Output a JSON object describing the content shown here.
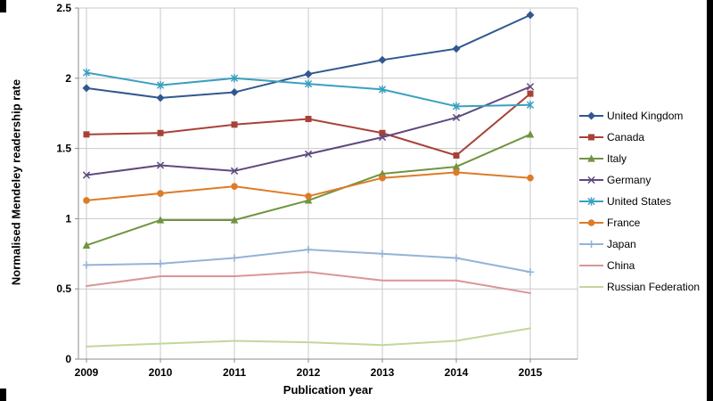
{
  "chart_data": {
    "type": "line",
    "title": "",
    "xlabel": "Publication year",
    "ylabel": "Normalised Mendeley readership rate",
    "x": [
      2009,
      2010,
      2011,
      2012,
      2013,
      2014,
      2015
    ],
    "ylim": [
      0,
      2.5
    ],
    "yticks": [
      0,
      0.5,
      1,
      1.5,
      2,
      2.5
    ],
    "ytick_labels": [
      "0",
      "0.5",
      "1",
      "1.5",
      "2",
      "2.5"
    ],
    "grid": true,
    "legend_position": "right",
    "series": [
      {
        "name": "United Kingdom",
        "color": "#31588F",
        "marker": "diamond",
        "values": [
          1.93,
          1.86,
          1.9,
          2.03,
          2.13,
          2.21,
          2.45
        ]
      },
      {
        "name": "Canada",
        "color": "#A94138",
        "marker": "square",
        "values": [
          1.6,
          1.61,
          1.67,
          1.71,
          1.61,
          1.45,
          1.89
        ]
      },
      {
        "name": "Italy",
        "color": "#6F9540",
        "marker": "triangle",
        "values": [
          0.81,
          0.99,
          0.99,
          1.13,
          1.32,
          1.37,
          1.6
        ]
      },
      {
        "name": "Germany",
        "color": "#5F4A7E",
        "marker": "x",
        "values": [
          1.31,
          1.38,
          1.34,
          1.46,
          1.58,
          1.72,
          1.94
        ]
      },
      {
        "name": "United States",
        "color": "#3BA0BF",
        "marker": "asterisk",
        "values": [
          2.04,
          1.95,
          2.0,
          1.96,
          1.92,
          1.8,
          1.81
        ]
      },
      {
        "name": "France",
        "color": "#DD7B28",
        "marker": "circle",
        "values": [
          1.13,
          1.18,
          1.23,
          1.16,
          1.29,
          1.33,
          1.29
        ]
      },
      {
        "name": "Japan",
        "color": "#95B3D7",
        "marker": "plus",
        "values": [
          0.67,
          0.68,
          0.72,
          0.78,
          0.75,
          0.72,
          0.62
        ]
      },
      {
        "name": "China",
        "color": "#D99694",
        "marker": "none",
        "values": [
          0.52,
          0.59,
          0.59,
          0.62,
          0.56,
          0.56,
          0.47
        ]
      },
      {
        "name": "Russian Federation",
        "color": "#C3D69B",
        "marker": "none",
        "values": [
          0.09,
          0.11,
          0.13,
          0.12,
          0.1,
          0.13,
          0.22
        ]
      }
    ],
    "colors": {
      "gridline": "#C9C9C9",
      "axis": "#8C8C8C",
      "text": "#000000",
      "background": "#FFFFFF"
    }
  }
}
